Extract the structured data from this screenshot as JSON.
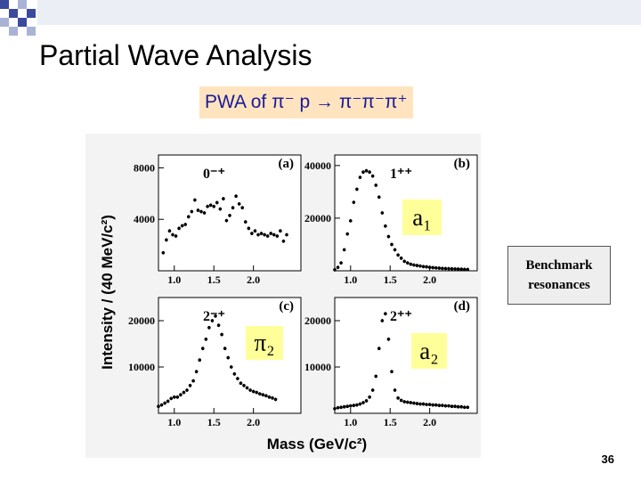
{
  "slide": {
    "title": "Partial Wave Analysis",
    "subtitle": "PWA of π⁻ p → π⁻π⁻π⁺",
    "callout_line1": "Benchmark",
    "callout_line2": "resonances",
    "page_number": "36"
  },
  "colors": {
    "subtitle_bg": "#ffe4bf",
    "subtitle_text": "#1a1a99",
    "callout_bg": "#eeeeee",
    "checker_blue": "#3a4a9e"
  },
  "figure": {
    "ylabel": "Intensity / (40 MeV/c²)",
    "xlabel": "Mass (GeV/c²)",
    "panels": [
      {
        "id": "a",
        "letter": "(a)",
        "wave": "0⁻⁺",
        "resonance": "",
        "yticks": [
          "4000",
          "8000"
        ]
      },
      {
        "id": "b",
        "letter": "(b)",
        "wave": "1⁺⁺",
        "resonance": "a₁",
        "yticks": [
          "20000",
          "40000"
        ]
      },
      {
        "id": "c",
        "letter": "(c)",
        "wave": "2⁻⁺",
        "resonance": "π₂",
        "yticks": [
          "10000",
          "20000"
        ]
      },
      {
        "id": "d",
        "letter": "(d)",
        "wave": "2⁺⁺",
        "resonance": "a₂",
        "yticks": [
          "10000",
          "20000"
        ]
      }
    ],
    "xticks": [
      "1.0",
      "1.5",
      "2.0"
    ]
  },
  "chart_data": [
    {
      "type": "scatter",
      "panel": "a",
      "xlim": [
        0.8,
        2.6
      ],
      "ylim": [
        0,
        9000
      ],
      "x": [
        0.86,
        0.9,
        0.94,
        0.98,
        1.02,
        1.06,
        1.1,
        1.14,
        1.18,
        1.22,
        1.26,
        1.3,
        1.34,
        1.38,
        1.42,
        1.46,
        1.5,
        1.54,
        1.58,
        1.62,
        1.66,
        1.7,
        1.74,
        1.78,
        1.82,
        1.86,
        1.9,
        1.94,
        1.98,
        2.02,
        2.06,
        2.1,
        2.14,
        2.18,
        2.22,
        2.26,
        2.3,
        2.34,
        2.38,
        2.42
      ],
      "y": [
        1400,
        2400,
        3100,
        2800,
        2700,
        3300,
        3500,
        3600,
        4200,
        4600,
        5500,
        4700,
        4600,
        4500,
        5000,
        5100,
        5000,
        5300,
        4800,
        5600,
        3900,
        4300,
        4900,
        5800,
        5200,
        4900,
        3800,
        3300,
        2900,
        3100,
        2800,
        2900,
        2800,
        2700,
        2900,
        2800,
        2700,
        3100,
        2300,
        2800
      ]
    },
    {
      "type": "scatter",
      "panel": "b",
      "xlim": [
        0.8,
        2.6
      ],
      "ylim": [
        0,
        44000
      ],
      "x": [
        0.8,
        0.84,
        0.88,
        0.92,
        0.96,
        1.0,
        1.04,
        1.08,
        1.12,
        1.16,
        1.2,
        1.24,
        1.28,
        1.32,
        1.36,
        1.4,
        1.44,
        1.48,
        1.52,
        1.56,
        1.6,
        1.64,
        1.68,
        1.72,
        1.76,
        1.8,
        1.84,
        1.88,
        1.92,
        1.96,
        2.0,
        2.04,
        2.08,
        2.12,
        2.16,
        2.2,
        2.24,
        2.28,
        2.32,
        2.36,
        2.4,
        2.44,
        2.48
      ],
      "y": [
        400,
        1300,
        3000,
        8000,
        14000,
        19000,
        26000,
        31000,
        35500,
        37500,
        38000,
        37500,
        36000,
        32500,
        28000,
        22000,
        17000,
        13000,
        10000,
        8000,
        6000,
        4800,
        3600,
        3000,
        2500,
        2200,
        2000,
        1800,
        1600,
        1500,
        1300,
        1200,
        1100,
        1000,
        900,
        850,
        800,
        750,
        700,
        650,
        600,
        550,
        500
      ]
    },
    {
      "type": "scatter",
      "panel": "c",
      "xlim": [
        0.8,
        2.6
      ],
      "ylim": [
        0,
        25000
      ],
      "x": [
        0.8,
        0.84,
        0.88,
        0.92,
        0.96,
        1.0,
        1.04,
        1.08,
        1.12,
        1.16,
        1.2,
        1.24,
        1.28,
        1.32,
        1.36,
        1.4,
        1.44,
        1.48,
        1.52,
        1.56,
        1.6,
        1.64,
        1.68,
        1.72,
        1.76,
        1.8,
        1.84,
        1.88,
        1.92,
        1.96,
        2.0,
        2.04,
        2.08,
        2.12,
        2.16,
        2.2,
        2.24,
        2.28
      ],
      "y": [
        1500,
        1800,
        2200,
        2600,
        3200,
        3500,
        3500,
        4000,
        4500,
        5000,
        6000,
        7000,
        9000,
        11500,
        14000,
        16000,
        18500,
        20000,
        21000,
        19000,
        17000,
        14000,
        12000,
        10000,
        8500,
        7500,
        6500,
        6000,
        5500,
        5000,
        4700,
        4500,
        4200,
        4000,
        3800,
        3500,
        3300,
        3000
      ]
    },
    {
      "type": "scatter",
      "panel": "d",
      "xlim": [
        0.8,
        2.6
      ],
      "ylim": [
        0,
        25000
      ],
      "x": [
        0.8,
        0.84,
        0.88,
        0.92,
        0.96,
        1.0,
        1.04,
        1.08,
        1.12,
        1.16,
        1.2,
        1.24,
        1.28,
        1.32,
        1.36,
        1.4,
        1.44,
        1.48,
        1.52,
        1.56,
        1.6,
        1.64,
        1.68,
        1.72,
        1.76,
        1.8,
        1.84,
        1.88,
        1.92,
        1.96,
        2.0,
        2.04,
        2.08,
        2.12,
        2.16,
        2.2,
        2.24,
        2.28,
        2.32,
        2.36,
        2.4,
        2.44,
        2.48
      ],
      "y": [
        1000,
        1200,
        1300,
        1400,
        1500,
        1600,
        1700,
        1800,
        2000,
        2300,
        2700,
        3500,
        5000,
        8000,
        14000,
        20000,
        21500,
        16000,
        9000,
        5000,
        3300,
        2800,
        2500,
        2400,
        2300,
        2200,
        2100,
        2000,
        2000,
        1900,
        1900,
        1800,
        1800,
        1700,
        1700,
        1600,
        1600,
        1500,
        1500,
        1400,
        1400,
        1300,
        1300
      ]
    }
  ]
}
